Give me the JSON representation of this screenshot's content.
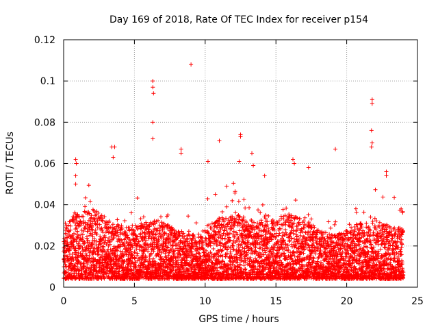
{
  "chart_data": {
    "type": "scatter",
    "title": "Day 169 of 2018, Rate Of TEC Index for receiver p154",
    "xlabel": "GPS time / hours",
    "ylabel": "ROTI / TECUs",
    "xlim": [
      0,
      25
    ],
    "ylim": [
      0,
      0.12
    ],
    "x_ticks": [
      0,
      5,
      10,
      15,
      20,
      25
    ],
    "y_ticks": [
      0,
      0.02,
      0.04,
      0.06,
      0.08,
      0.1,
      0.12
    ],
    "x_tick_labels": [
      "0",
      "5",
      "10",
      "15",
      "20",
      "25"
    ],
    "y_tick_labels": [
      "0",
      "0.02",
      "0.04",
      "0.06",
      "0.08",
      "0.1",
      "0.12"
    ],
    "grid": true,
    "marker": "+",
    "marker_color": "#ff0000",
    "series": [
      {
        "name": "ROTI",
        "x_range": [
          0,
          24
        ],
        "typical_range": [
          0.004,
          0.03
        ],
        "n_points": 5200,
        "highlights": [
          {
            "x": 9.0,
            "y": 0.108
          },
          {
            "x": 6.3,
            "y": 0.1
          },
          {
            "x": 6.3,
            "y": 0.097
          },
          {
            "x": 6.35,
            "y": 0.094
          },
          {
            "x": 6.3,
            "y": 0.08
          },
          {
            "x": 6.3,
            "y": 0.072
          },
          {
            "x": 21.8,
            "y": 0.091
          },
          {
            "x": 21.8,
            "y": 0.089
          },
          {
            "x": 21.75,
            "y": 0.076
          },
          {
            "x": 21.8,
            "y": 0.07
          },
          {
            "x": 21.75,
            "y": 0.068
          },
          {
            "x": 12.5,
            "y": 0.074
          },
          {
            "x": 12.5,
            "y": 0.073
          },
          {
            "x": 11.0,
            "y": 0.071
          },
          {
            "x": 3.4,
            "y": 0.068
          },
          {
            "x": 3.6,
            "y": 0.068
          },
          {
            "x": 8.3,
            "y": 0.067
          },
          {
            "x": 8.3,
            "y": 0.065
          },
          {
            "x": 19.2,
            "y": 0.067
          },
          {
            "x": 13.3,
            "y": 0.065
          },
          {
            "x": 0.85,
            "y": 0.062
          },
          {
            "x": 0.9,
            "y": 0.06
          },
          {
            "x": 0.85,
            "y": 0.054
          },
          {
            "x": 0.85,
            "y": 0.05
          },
          {
            "x": 16.2,
            "y": 0.062
          },
          {
            "x": 16.3,
            "y": 0.06
          },
          {
            "x": 10.2,
            "y": 0.061
          },
          {
            "x": 12.4,
            "y": 0.061
          },
          {
            "x": 13.4,
            "y": 0.059
          },
          {
            "x": 3.5,
            "y": 0.063
          },
          {
            "x": 22.8,
            "y": 0.056
          },
          {
            "x": 22.8,
            "y": 0.054
          },
          {
            "x": 14.2,
            "y": 0.054
          },
          {
            "x": 17.3,
            "y": 0.058
          }
        ]
      }
    ]
  }
}
